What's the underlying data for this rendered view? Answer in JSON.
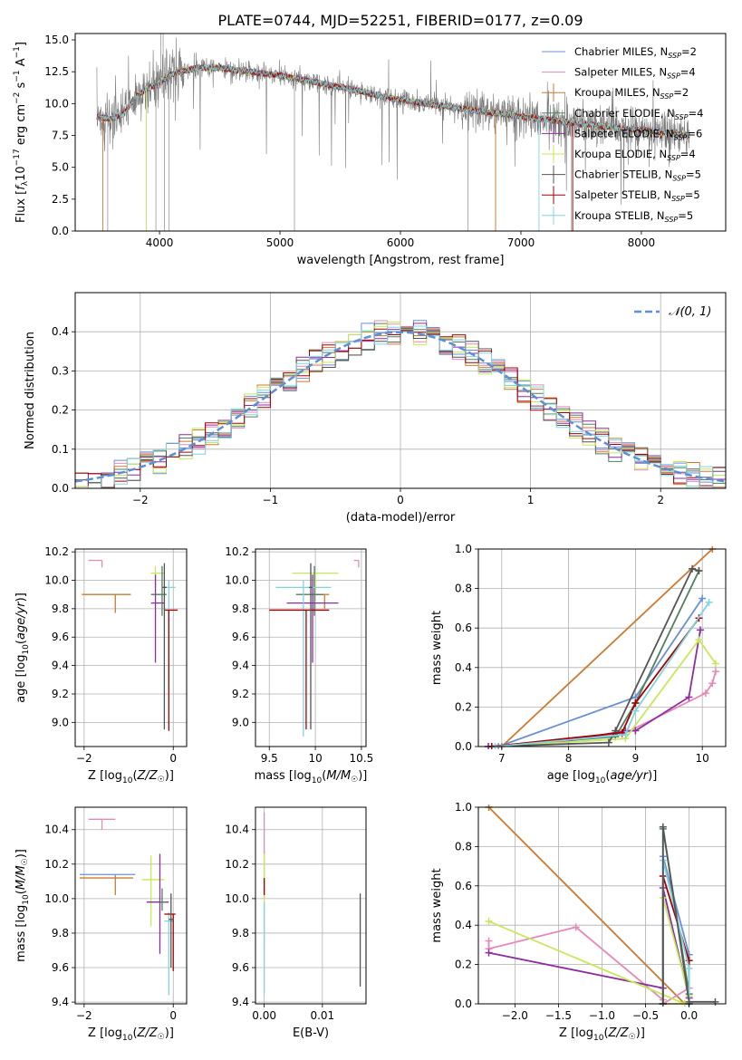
{
  "figure_title": "PLATE=0744, MJD=52251, FIBERID=0177, z=0.09",
  "colors": {
    "chabrier_miles": "#6b8fd6",
    "salpeter_miles": "#e589b7",
    "kroupa_miles": "#cc7a2e",
    "chabrier_elodie": "#4f7f5e",
    "salpeter_elodie": "#8e2ca0",
    "kroupa_elodie": "#c6e85a",
    "chabrier_stelib": "#555555",
    "salpeter_stelib": "#a50000",
    "kroupa_stelib": "#7fd4de",
    "normal_curve": "#5b8fd6",
    "grid": "#b0b0b0"
  },
  "chart_data": [
    {
      "id": "spectrum",
      "type": "line",
      "title": "PLATE=0744, MJD=52251, FIBERID=0177, z=0.09",
      "xlabel": "wavelength [Angstrom, rest frame]",
      "ylabel": "Flux [f_λ 10^-17 erg cm^-2 s^-1 A^-1]",
      "xlim": [
        3300,
        8700
      ],
      "ylim": [
        0,
        15.5
      ],
      "xticks": [
        4000,
        5000,
        6000,
        7000,
        8000
      ],
      "yticks": [
        0.0,
        2.5,
        5.0,
        7.5,
        10.0,
        12.5,
        15.0
      ],
      "grid": false,
      "legend_position": "upper right",
      "legend": [
        {
          "label": "Chabrier MILES, N_SSP=2",
          "color_key": "chabrier_miles"
        },
        {
          "label": "Salpeter MILES, N_SSP=4",
          "color_key": "salpeter_miles"
        },
        {
          "label": "Kroupa MILES, N_SSP=2",
          "color_key": "kroupa_miles"
        },
        {
          "label": "Chabrier ELODIE, N_SSP=4",
          "color_key": "chabrier_elodie"
        },
        {
          "label": "Salpeter ELODIE, N_SSP=6",
          "color_key": "salpeter_elodie"
        },
        {
          "label": "Kroupa ELODIE, N_SSP=4",
          "color_key": "kroupa_elodie"
        },
        {
          "label": "Chabrier STELIB, N_SSP=5",
          "color_key": "chabrier_stelib"
        },
        {
          "label": "Salpeter STELIB, N_SSP=5",
          "color_key": "salpeter_stelib"
        },
        {
          "label": "Kroupa STELIB, N_SSP=5",
          "color_key": "kroupa_stelib"
        }
      ],
      "continuum": {
        "x": [
          3480,
          3600,
          3700,
          3800,
          3900,
          4000,
          4100,
          4300,
          4500,
          5000,
          5500,
          6000,
          6500,
          7000,
          7500,
          8000,
          8400
        ],
        "y": [
          9.0,
          8.8,
          9.2,
          10.5,
          11.2,
          11.6,
          12.3,
          12.8,
          12.8,
          12.2,
          11.3,
          10.3,
          9.6,
          9.0,
          8.4,
          7.9,
          7.5
        ]
      }
    },
    {
      "id": "residuals",
      "type": "line",
      "xlabel": "(data-model)/error",
      "ylabel": "Normed distribution",
      "xlim": [
        -2.5,
        2.5
      ],
      "ylim": [
        0,
        0.5
      ],
      "xticks": [
        -2,
        -1,
        0,
        1,
        2
      ],
      "yticks": [
        0.0,
        0.1,
        0.2,
        0.3,
        0.4
      ],
      "grid": true,
      "legend": [
        {
          "label": "𝒩(0, 1)",
          "color_key": "normal_curve"
        }
      ],
      "legend_position": "upper right"
    },
    {
      "id": "age_vs_Z",
      "type": "scatter",
      "xlabel": "Z [log10(Z/Z☉)]",
      "ylabel": "age  [log10(age/yr)]",
      "xlim": [
        -2.2,
        0.3
      ],
      "ylim": [
        8.83,
        10.22
      ],
      "xticks": [
        -2,
        0
      ],
      "yticks": [
        9.0,
        9.2,
        9.4,
        9.6,
        9.8,
        10.0,
        10.2
      ],
      "grid": true,
      "points": [
        {
          "color_key": "salpeter_miles",
          "x": -1.6,
          "y": 10.14,
          "xerr": [
            0.3,
            0
          ],
          "yerr": [
            0.05,
            0
          ]
        },
        {
          "color_key": "kroupa_miles",
          "x": -1.3,
          "y": 9.9,
          "xerr": [
            0.75,
            0.35
          ],
          "yerr": [
            0.13,
            0
          ]
        },
        {
          "color_key": "kroupa_elodie",
          "x": -0.4,
          "y": 10.05,
          "xerr": [
            0.1,
            0.2
          ],
          "yerr": [
            0.1,
            0.05
          ]
        },
        {
          "color_key": "chabrier_elodie",
          "x": -0.25,
          "y": 9.9,
          "xerr": [
            0.25,
            0.1
          ],
          "yerr": [
            0.15,
            0.2
          ]
        },
        {
          "color_key": "salpeter_elodie",
          "x": -0.4,
          "y": 9.84,
          "xerr": [
            0.1,
            0.2
          ],
          "yerr": [
            0.42,
            0.2
          ]
        },
        {
          "color_key": "kroupa_stelib",
          "x": -0.1,
          "y": 9.95,
          "xerr": [
            0.15,
            0.15
          ],
          "yerr": [
            0.7,
            0.05
          ]
        },
        {
          "color_key": "salpeter_stelib",
          "x": -0.1,
          "y": 9.79,
          "xerr": [
            0.1,
            0.2
          ],
          "yerr": [
            0.85,
            0
          ]
        },
        {
          "color_key": "chabrier_stelib",
          "x": -0.2,
          "y": 9.95,
          "xerr": [
            0.05,
            0.05
          ],
          "yerr": [
            1.0,
            0.17
          ]
        }
      ]
    },
    {
      "id": "age_vs_mass",
      "type": "scatter",
      "xlabel": "mass [log10(M/M☉)]",
      "ylabel": "",
      "xlim": [
        9.35,
        10.55
      ],
      "ylim": [
        8.83,
        10.22
      ],
      "xticks": [
        9.5,
        10.0,
        10.5
      ],
      "yticks": [
        9.0,
        9.2,
        9.4,
        9.6,
        9.8,
        10.0,
        10.2
      ],
      "grid": true,
      "points": [
        {
          "color_key": "salpeter_miles",
          "x": 10.47,
          "y": 10.14,
          "xerr": [
            0.05,
            0
          ],
          "yerr": [
            0.05,
            0
          ]
        },
        {
          "color_key": "kroupa_elodie",
          "x": 10.0,
          "y": 10.05,
          "xerr": [
            0.25,
            0.25
          ],
          "yerr": [
            0.1,
            0
          ]
        },
        {
          "color_key": "kroupa_miles",
          "x": 10.1,
          "y": 9.9,
          "xerr": [
            0.1,
            0.05
          ],
          "yerr": [
            0.1,
            0
          ]
        },
        {
          "color_key": "chabrier_elodie",
          "x": 9.99,
          "y": 9.9,
          "xerr": [
            0.2,
            0.1
          ],
          "yerr": [
            0.15,
            0.2
          ]
        },
        {
          "color_key": "salpeter_elodie",
          "x": 9.97,
          "y": 9.84,
          "xerr": [
            0.28,
            0.28
          ],
          "yerr": [
            0.42,
            0.2
          ]
        },
        {
          "color_key": "kroupa_stelib",
          "x": 9.87,
          "y": 9.95,
          "xerr": [
            0.3,
            0.3
          ],
          "yerr": [
            1.05,
            0.05
          ]
        },
        {
          "color_key": "salpeter_stelib",
          "x": 9.9,
          "y": 9.79,
          "xerr": [
            0.4,
            0.25
          ],
          "yerr": [
            0.84,
            0
          ]
        },
        {
          "color_key": "chabrier_stelib",
          "x": 9.95,
          "y": 9.95,
          "xerr": [
            0.02,
            0.02
          ],
          "yerr": [
            1.0,
            0.17
          ]
        }
      ]
    },
    {
      "id": "mass_weight_vs_age",
      "type": "line",
      "xlabel": "age  [log10(age/yr)]",
      "ylabel": "mass weight",
      "xlim": [
        6.65,
        10.35
      ],
      "ylim": [
        0,
        1.0
      ],
      "xticks": [
        7,
        8,
        9,
        10
      ],
      "yticks": [
        0.0,
        0.2,
        0.4,
        0.6,
        0.8,
        1.0
      ],
      "grid": true,
      "series": [
        {
          "color_key": "kroupa_miles",
          "x": [
            7.0,
            10.15
          ],
          "y": [
            0.0,
            1.0
          ]
        },
        {
          "color_key": "chabrier_miles",
          "x": [
            6.95,
            9.0,
            10.0
          ],
          "y": [
            0.0,
            0.25,
            0.75
          ]
        },
        {
          "color_key": "salpeter_miles",
          "x": [
            6.8,
            8.8,
            10.05,
            10.15,
            10.2
          ],
          "y": [
            0.0,
            0.06,
            0.27,
            0.32,
            0.38
          ]
        },
        {
          "color_key": "chabrier_elodie",
          "x": [
            6.85,
            8.7,
            9.0,
            9.95
          ],
          "y": [
            0.0,
            0.05,
            0.22,
            0.89
          ]
        },
        {
          "color_key": "salpeter_elodie",
          "x": [
            6.8,
            8.0,
            8.85,
            9.0,
            9.8,
            9.97
          ],
          "y": [
            0.0,
            0.03,
            0.08,
            0.08,
            0.25,
            0.59
          ]
        },
        {
          "color_key": "kroupa_elodie",
          "x": [
            6.85,
            8.85,
            9.95,
            10.2
          ],
          "y": [
            0.0,
            0.04,
            0.54,
            0.42
          ]
        },
        {
          "color_key": "chabrier_stelib",
          "x": [
            6.85,
            8.6,
            8.7,
            9.85,
            9.95
          ],
          "y": [
            0.0,
            0.02,
            0.08,
            0.9,
            0.89
          ]
        },
        {
          "color_key": "salpeter_stelib",
          "x": [
            6.85,
            8.8,
            9.0,
            9.95
          ],
          "y": [
            0.0,
            0.07,
            0.22,
            0.65
          ]
        },
        {
          "color_key": "kroupa_stelib",
          "x": [
            6.9,
            8.85,
            9.0,
            10.1
          ],
          "y": [
            0.0,
            0.06,
            0.18,
            0.73
          ]
        }
      ]
    },
    {
      "id": "mass_vs_Z",
      "type": "scatter",
      "xlabel": "Z [log10(Z/Z☉)]",
      "ylabel": "mass [log10(M/M☉)]",
      "xlim": [
        -2.2,
        0.3
      ],
      "ylim": [
        9.39,
        10.53
      ],
      "xticks": [
        -2,
        0
      ],
      "yticks": [
        9.4,
        9.6,
        9.8,
        10.0,
        10.2,
        10.4
      ],
      "grid": true,
      "points": [
        {
          "color_key": "salpeter_miles",
          "x": -1.6,
          "y": 10.46,
          "xerr": [
            0.3,
            0.3
          ],
          "yerr": [
            0.06,
            0
          ]
        },
        {
          "color_key": "chabrier_miles",
          "x": -1.3,
          "y": 10.14,
          "xerr": [
            0.8,
            0.45
          ],
          "yerr": [
            0.02,
            0
          ]
        },
        {
          "color_key": "kroupa_miles",
          "x": -1.3,
          "y": 10.12,
          "xerr": [
            0.8,
            0.4
          ],
          "yerr": [
            0.1,
            0
          ]
        },
        {
          "color_key": "kroupa_elodie",
          "x": -0.5,
          "y": 10.11,
          "xerr": [
            0.2,
            0.3
          ],
          "yerr": [
            0.27,
            0.14
          ]
        },
        {
          "color_key": "salpeter_elodie",
          "x": -0.3,
          "y": 9.98,
          "xerr": [
            0.3,
            0.2
          ],
          "yerr": [
            0.3,
            0.28
          ]
        },
        {
          "color_key": "chabrier_elodie",
          "x": -0.25,
          "y": 9.98,
          "xerr": [
            0.05,
            0.1
          ],
          "yerr": [
            0.05,
            0.08
          ]
        },
        {
          "color_key": "kroupa_stelib",
          "x": -0.1,
          "y": 9.87,
          "xerr": [
            0.1,
            0.1
          ],
          "yerr": [
            0.43,
            0.05
          ]
        },
        {
          "color_key": "salpeter_stelib",
          "x": 0.0,
          "y": 9.91,
          "xerr": [
            0.2,
            0.05
          ],
          "yerr": [
            0.33,
            0
          ]
        },
        {
          "color_key": "chabrier_stelib",
          "x": -0.05,
          "y": 9.88,
          "xerr": [
            0.05,
            0.05
          ],
          "yerr": [
            0.28,
            0.15
          ]
        }
      ]
    },
    {
      "id": "mass_vs_ebv",
      "type": "scatter",
      "xlabel": "E(B-V)",
      "ylabel": "",
      "xlim": [
        -0.0015,
        0.0175
      ],
      "ylim": [
        9.39,
        10.53
      ],
      "xticks": [
        0.0,
        0.01
      ],
      "xticklabels": [
        "0.00",
        "0.01"
      ],
      "yticks": [
        9.4,
        9.6,
        9.8,
        10.0,
        10.2,
        10.4
      ],
      "grid": true,
      "points": [
        {
          "color_key": "salpeter_miles",
          "x": 0.0,
          "y": 10.4,
          "yerr": [
            0.4,
            0.1
          ]
        },
        {
          "color_key": "kroupa_elodie",
          "x": 0.0,
          "y": 10.2,
          "yerr": [
            0.5,
            0.06
          ]
        },
        {
          "color_key": "salpeter_stelib",
          "x": 0.0,
          "y": 10.1,
          "yerr": [
            0.08,
            0.02
          ]
        },
        {
          "color_key": "kroupa_stelib",
          "x": 0.0,
          "y": 9.95,
          "yerr": [
            0.5,
            0.03
          ]
        },
        {
          "color_key": "chabrier_stelib",
          "x": 0.0165,
          "y": 9.76,
          "yerr": [
            0.27,
            0.27
          ]
        }
      ]
    },
    {
      "id": "mass_weight_vs_Z",
      "type": "line",
      "xlabel": "Z [log10(Z/Z☉)]",
      "ylabel": "mass weight",
      "xlim": [
        -2.42,
        0.42
      ],
      "ylim": [
        0,
        1.0
      ],
      "xticks": [
        -2.0,
        -1.5,
        -1.0,
        -0.5,
        0.0
      ],
      "xticklabels": [
        "−2.0",
        "−1.5",
        "−1.0",
        "−0.5",
        "0.0"
      ],
      "yticks": [
        0.0,
        0.2,
        0.4,
        0.6,
        0.8,
        1.0
      ],
      "grid": true,
      "series": [
        {
          "color_key": "kroupa_miles",
          "x": [
            -2.3,
            -0.05,
            0.0
          ],
          "y": [
            1.0,
            0.0,
            0.0
          ]
        },
        {
          "color_key": "salpeter_miles",
          "x": [
            -2.3,
            -2.3,
            -1.3,
            -0.3,
            -0.3,
            0.0,
            0.0
          ],
          "y": [
            0.32,
            0.28,
            0.39,
            0.02,
            0.0,
            0.08,
            0.0
          ]
        },
        {
          "color_key": "salpeter_elodie",
          "x": [
            -2.3,
            -0.3,
            -0.3,
            0.0,
            0.0
          ],
          "y": [
            0.26,
            0.08,
            0.59,
            0.03,
            0.0
          ]
        },
        {
          "color_key": "kroupa_elodie",
          "x": [
            -2.3,
            -0.05,
            -0.3,
            -0.3,
            0.0
          ],
          "y": [
            0.42,
            0.0,
            0.0,
            0.54,
            0.04
          ]
        },
        {
          "color_key": "chabrier_elodie",
          "x": [
            -0.3,
            -0.3,
            0.0,
            0.0
          ],
          "y": [
            0.0,
            0.89,
            0.05,
            0.0
          ]
        },
        {
          "color_key": "chabrier_miles",
          "x": [
            -0.3,
            -0.3,
            0.0,
            0.0
          ],
          "y": [
            0.0,
            0.75,
            0.25,
            0.0
          ]
        },
        {
          "color_key": "salpeter_stelib",
          "x": [
            -0.3,
            -0.3,
            0.0,
            0.0
          ],
          "y": [
            0.0,
            0.65,
            0.22,
            0.0
          ]
        },
        {
          "color_key": "kroupa_stelib",
          "x": [
            -0.3,
            -0.3,
            0.0,
            0.0
          ],
          "y": [
            0.0,
            0.73,
            0.18,
            0.0
          ]
        },
        {
          "color_key": "chabrier_stelib",
          "x": [
            -0.3,
            -0.3,
            0.0,
            0.3
          ],
          "y": [
            0.0,
            0.9,
            0.01,
            0.01
          ]
        }
      ]
    }
  ]
}
